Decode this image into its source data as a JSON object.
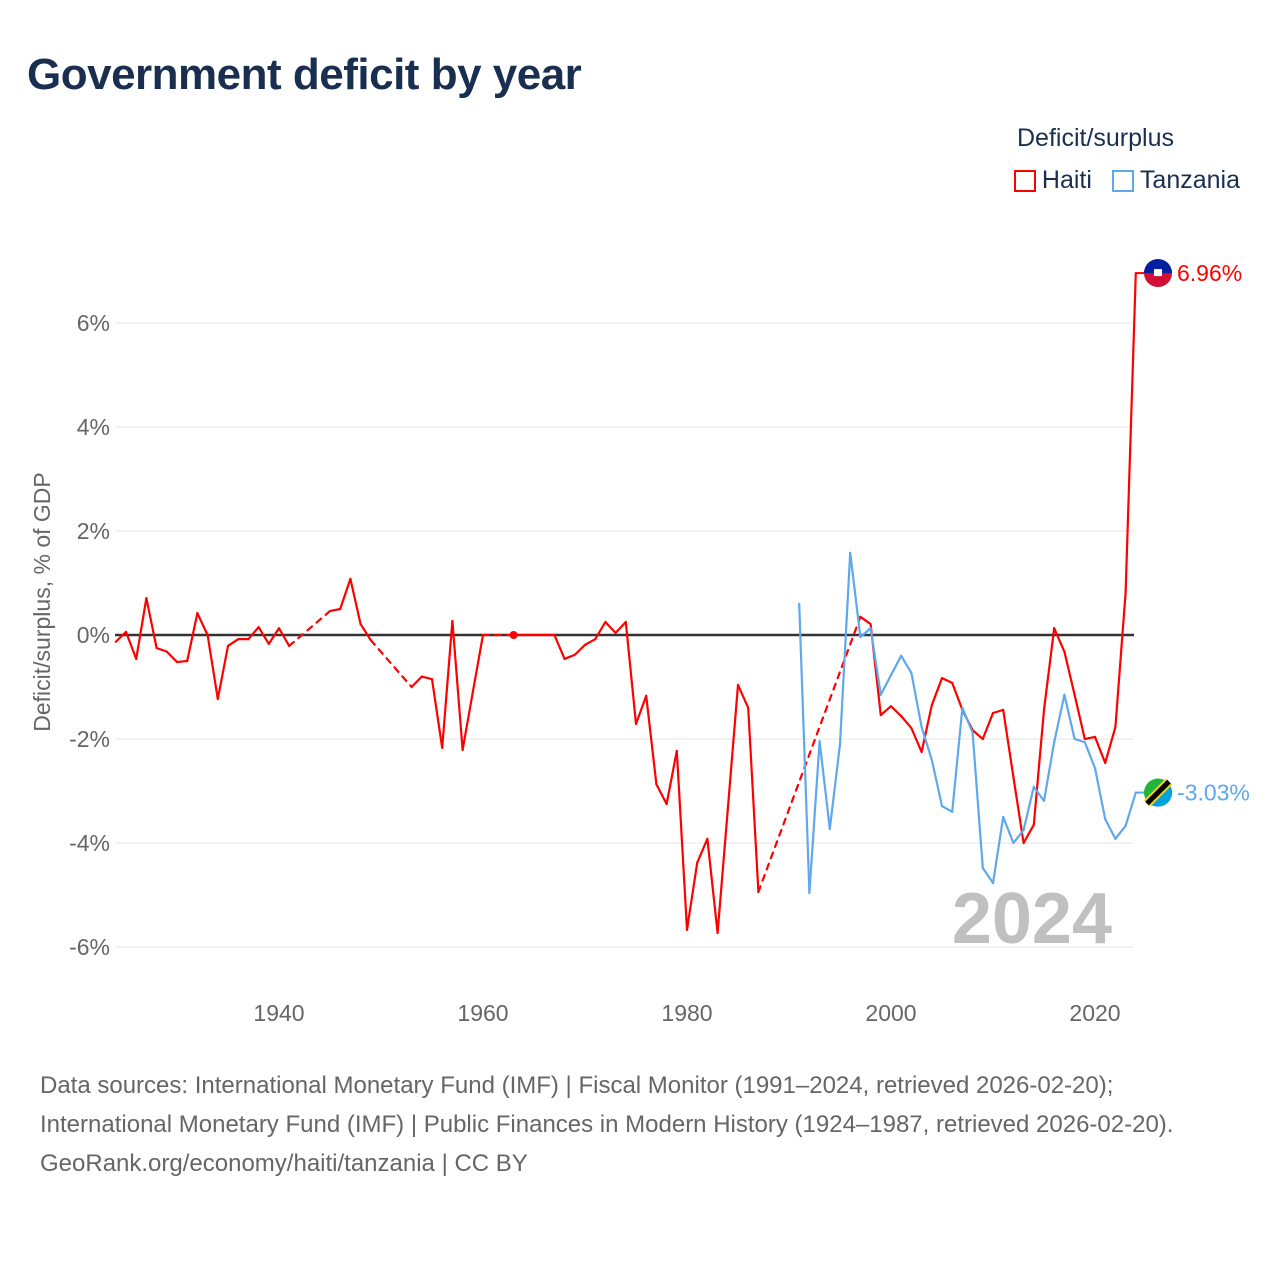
{
  "title": "Government deficit by year",
  "legend": {
    "title": "Deficit/surplus",
    "placement": "top-right"
  },
  "footer": {
    "sources": "Data sources: International Monetary Fund (IMF) | Fiscal Monitor (1991–2024, retrieved 2026-02-20); International Monetary Fund (IMF) | Public Finances in Modern History (1924–1987, retrieved 2026-02-20).",
    "credit": "GeoRank.org/economy/haiti/tanzania | CC BY"
  },
  "chart_data": {
    "type": "line",
    "title": "Government deficit by year",
    "xlabel": "",
    "ylabel": "Deficit/surplus, % of GDP",
    "xlim": [
      1924,
      2024
    ],
    "ylim": [
      -6.5,
      7
    ],
    "grid": true,
    "year_watermark": "2024",
    "x_ticks": [
      1940,
      1960,
      1980,
      2000,
      2020
    ],
    "y_ticks": [
      {
        "value": 6,
        "label": "6%"
      },
      {
        "value": 4,
        "label": "4%"
      },
      {
        "value": 2,
        "label": "2%"
      },
      {
        "value": 0,
        "label": "0%"
      },
      {
        "value": -2,
        "label": "-2%"
      },
      {
        "value": -4,
        "label": "-4%"
      },
      {
        "value": -6,
        "label": "-6%"
      }
    ],
    "series": [
      {
        "name": "Haiti",
        "color": "#ff0000",
        "end_label": "6.96%",
        "points": [
          [
            1924,
            -0.13
          ],
          [
            1925,
            0.06
          ],
          [
            1926,
            -0.46
          ],
          [
            1927,
            0.71
          ],
          [
            1928,
            -0.25
          ],
          [
            1929,
            -0.32
          ],
          [
            1930,
            -0.52
          ],
          [
            1931,
            -0.5
          ],
          [
            1932,
            0.42
          ],
          [
            1933,
            0.0
          ],
          [
            1934,
            -1.23
          ],
          [
            1935,
            -0.21
          ],
          [
            1936,
            -0.08
          ],
          [
            1937,
            -0.08
          ],
          [
            1938,
            0.15
          ],
          [
            1939,
            -0.17
          ],
          [
            1940,
            0.13
          ],
          [
            1941,
            -0.21
          ],
          [
            1945,
            0.46
          ],
          [
            1946,
            0.5
          ],
          [
            1947,
            1.08
          ],
          [
            1948,
            0.21
          ],
          [
            1949,
            -0.1
          ],
          [
            1953,
            -1.0
          ],
          [
            1954,
            -0.8
          ],
          [
            1955,
            -0.85
          ],
          [
            1956,
            -2.17
          ],
          [
            1957,
            0.27
          ],
          [
            1958,
            -2.21
          ],
          [
            1959,
            -1.1
          ],
          [
            1960,
            0.0
          ],
          [
            1963,
            0.0
          ],
          [
            1964,
            0.0
          ],
          [
            1965,
            0.0
          ],
          [
            1966,
            0.0
          ],
          [
            1967,
            0.0
          ],
          [
            1968,
            -0.46
          ],
          [
            1969,
            -0.38
          ],
          [
            1970,
            -0.19
          ],
          [
            1971,
            -0.08
          ],
          [
            1972,
            0.25
          ],
          [
            1973,
            0.04
          ],
          [
            1974,
            0.25
          ],
          [
            1975,
            -1.71
          ],
          [
            1976,
            -1.17
          ],
          [
            1977,
            -2.87
          ],
          [
            1978,
            -3.25
          ],
          [
            1979,
            -2.23
          ],
          [
            1980,
            -5.67
          ],
          [
            1981,
            -4.38
          ],
          [
            1982,
            -3.92
          ],
          [
            1983,
            -5.73
          ],
          [
            1984,
            -3.35
          ],
          [
            1985,
            -0.96
          ],
          [
            1986,
            -1.4
          ],
          [
            1987,
            -4.94
          ],
          [
            1997,
            0.35
          ],
          [
            1998,
            0.21
          ],
          [
            1999,
            -1.54
          ],
          [
            2000,
            -1.37
          ],
          [
            2001,
            -1.56
          ],
          [
            2002,
            -1.79
          ],
          [
            2003,
            -2.25
          ],
          [
            2004,
            -1.35
          ],
          [
            2005,
            -0.83
          ],
          [
            2006,
            -0.92
          ],
          [
            2007,
            -1.44
          ],
          [
            2008,
            -1.83
          ],
          [
            2009,
            -2.0
          ],
          [
            2010,
            -1.5
          ],
          [
            2011,
            -1.44
          ],
          [
            2012,
            -2.73
          ],
          [
            2013,
            -4.0
          ],
          [
            2014,
            -3.65
          ],
          [
            2015,
            -1.44
          ],
          [
            2016,
            0.13
          ],
          [
            2017,
            -0.32
          ],
          [
            2018,
            -1.15
          ],
          [
            2019,
            -2.0
          ],
          [
            2020,
            -1.96
          ],
          [
            2021,
            -2.46
          ],
          [
            2022,
            -1.77
          ],
          [
            2023,
            0.81
          ],
          [
            2024,
            6.96
          ]
        ]
      },
      {
        "name": "Tanzania",
        "color": "#5fa8ec",
        "end_label": "-3.03%",
        "points": [
          [
            1991,
            0.6
          ],
          [
            1992,
            -4.96
          ],
          [
            1993,
            -2.04
          ],
          [
            1994,
            -3.73
          ],
          [
            1995,
            -2.1
          ],
          [
            1996,
            1.58
          ],
          [
            1997,
            -0.04
          ],
          [
            1998,
            0.13
          ],
          [
            1999,
            -1.15
          ],
          [
            2000,
            -0.77
          ],
          [
            2001,
            -0.4
          ],
          [
            2002,
            -0.73
          ],
          [
            2003,
            -1.77
          ],
          [
            2004,
            -2.4
          ],
          [
            2005,
            -3.29
          ],
          [
            2006,
            -3.4
          ],
          [
            2007,
            -1.4
          ],
          [
            2008,
            -1.88
          ],
          [
            2009,
            -4.48
          ],
          [
            2010,
            -4.77
          ],
          [
            2011,
            -3.5
          ],
          [
            2012,
            -4.0
          ],
          [
            2013,
            -3.75
          ],
          [
            2014,
            -2.92
          ],
          [
            2015,
            -3.19
          ],
          [
            2016,
            -2.06
          ],
          [
            2017,
            -1.15
          ],
          [
            2018,
            -2.0
          ],
          [
            2019,
            -2.06
          ],
          [
            2020,
            -2.56
          ],
          [
            2021,
            -3.54
          ],
          [
            2022,
            -3.92
          ],
          [
            2023,
            -3.67
          ],
          [
            2024,
            -3.03
          ]
        ]
      }
    ]
  }
}
